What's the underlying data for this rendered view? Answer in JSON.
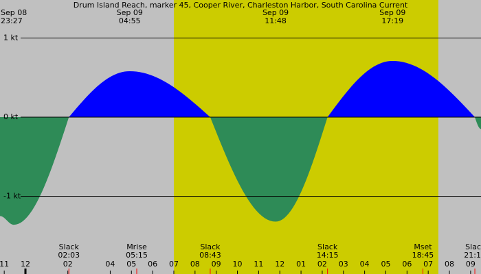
{
  "chart_data": {
    "type": "current",
    "title": "Drum Island Reach, marker 45, Cooper River, Charleston Harbor, South Carolina Current",
    "x": [
      -1.2,
      -0.55,
      2.05,
      4.917,
      8.717,
      11.8,
      14.25,
      17.317,
      21.2,
      21.49
    ],
    "values": [
      -1.25,
      -1.36,
      0,
      0.58,
      0,
      -1.32,
      0,
      0.71,
      0,
      -0.15
    ],
    "flood_color": "#0000ff",
    "ebb_color": "#2e8b57",
    "background_color": "#c0c0c0",
    "daylight_color": "#cccc00",
    "daylight": [
      7.0,
      19.48
    ],
    "xlim": [
      -1.2,
      21.49
    ],
    "ylim": [
      -1.48,
      1.48
    ],
    "yticks": [
      {
        "value": 1,
        "label": "1 kt"
      },
      {
        "value": 0,
        "label": "0 kt"
      },
      {
        "value": -1,
        "label": "-1 kt"
      }
    ],
    "xticks": [
      {
        "value": -1,
        "label": "11"
      },
      {
        "value": 0,
        "label": "12"
      },
      {
        "value": 2,
        "label": "02"
      },
      {
        "value": 4,
        "label": "04"
      },
      {
        "value": 5,
        "label": "05"
      },
      {
        "value": 6,
        "label": "06"
      },
      {
        "value": 7,
        "label": "07"
      },
      {
        "value": 8,
        "label": "08"
      },
      {
        "value": 9,
        "label": "09"
      },
      {
        "value": 10,
        "label": "10"
      },
      {
        "value": 11,
        "label": "11"
      },
      {
        "value": 12,
        "label": "12"
      },
      {
        "value": 13,
        "label": "01"
      },
      {
        "value": 14,
        "label": "02"
      },
      {
        "value": 15,
        "label": "03"
      },
      {
        "value": 16,
        "label": "04"
      },
      {
        "value": 17,
        "label": "05"
      },
      {
        "value": 18,
        "label": "06"
      },
      {
        "value": 19,
        "label": "07"
      },
      {
        "value": 20,
        "label": "08"
      },
      {
        "value": 21,
        "label": "09"
      }
    ],
    "extrema_labels": [
      {
        "x": -0.55,
        "date": "Sep 08",
        "time": "23:27"
      },
      {
        "x": 4.917,
        "date": "Sep 09",
        "time": "04:55"
      },
      {
        "x": 11.8,
        "date": "Sep 09",
        "time": "11:48"
      },
      {
        "x": 17.317,
        "date": "Sep 09",
        "time": "17:19"
      }
    ],
    "events": [
      {
        "x": 2.05,
        "label": "Slack",
        "time": "02:03"
      },
      {
        "x": 5.25,
        "label": "Mrise",
        "time": "05:15"
      },
      {
        "x": 8.717,
        "label": "Slack",
        "time": "08:43"
      },
      {
        "x": 14.25,
        "label": "Slack",
        "time": "14:15"
      },
      {
        "x": 18.75,
        "label": "Mset",
        "time": "18:45"
      },
      {
        "x": 21.2,
        "label": "Slac",
        "time": "21:1"
      }
    ]
  }
}
